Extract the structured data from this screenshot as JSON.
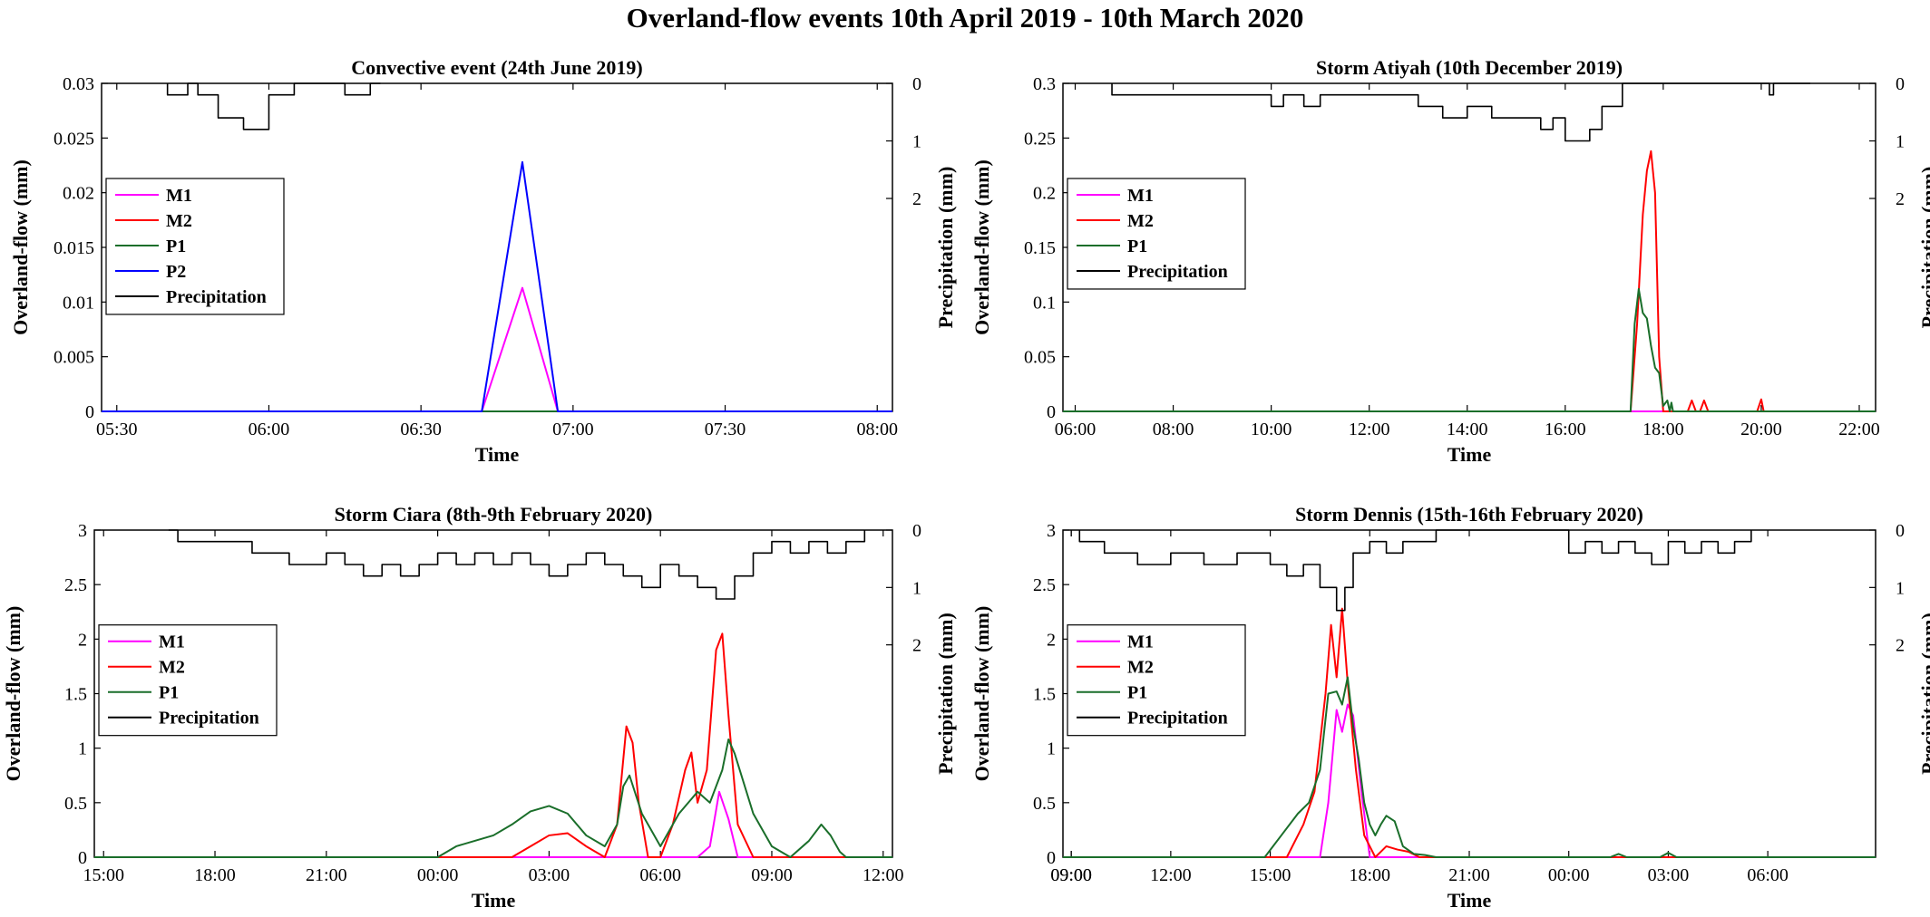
{
  "figure": {
    "title": "Overland-flow events 10th April 2019 - 10th March 2020"
  },
  "colors": {
    "M1": "#ff00ff",
    "M2": "#ff0000",
    "P1": "#1a6e2a",
    "P2": "#0000ff",
    "Precipitation": "#000000"
  },
  "chart_data": [
    {
      "type": "line",
      "title": "Convective event (24th June 2019)",
      "xlabel": "Time",
      "ylabel": "Overland-flow (mm)",
      "y2label": "Precipitation (mm)",
      "xlim": [
        "05:27",
        "08:03"
      ],
      "ylim": [
        0,
        0.03
      ],
      "y2lim": [
        0,
        5.7
      ],
      "y2_reversed": true,
      "xticks": [
        "05:30",
        "06:00",
        "06:30",
        "07:00",
        "07:30",
        "08:00"
      ],
      "yticks": [
        "0",
        "0.005",
        "0.01",
        "0.015",
        "0.02",
        "0.025",
        "0.03"
      ],
      "y2ticks": [
        "0",
        "1",
        "2"
      ],
      "legend_position": "middle-left",
      "legend": [
        "M1",
        "M2",
        "P1",
        "P2",
        "Precipitation"
      ],
      "series": [
        {
          "name": "M1",
          "x": [
            "05:27",
            "06:42",
            "06:50",
            "06:57",
            "08:03"
          ],
          "y": [
            0,
            0,
            0.0113,
            0,
            0
          ]
        },
        {
          "name": "M2",
          "x": [
            "05:27",
            "08:03"
          ],
          "y": [
            0,
            0
          ]
        },
        {
          "name": "P1",
          "x": [
            "05:27",
            "08:03"
          ],
          "y": [
            0,
            0
          ]
        },
        {
          "name": "P2",
          "x": [
            "05:27",
            "06:42",
            "06:50",
            "06:57",
            "08:03"
          ],
          "y": [
            0,
            0,
            0.0228,
            0,
            0
          ]
        },
        {
          "name": "Precipitation",
          "step": true,
          "x": [
            "05:40",
            "05:44",
            "05:46",
            "05:50",
            "05:55",
            "06:00",
            "06:05",
            "06:15",
            "06:20",
            "06:22"
          ],
          "y": [
            0.2,
            0,
            0.2,
            0.6,
            0.8,
            0.2,
            0,
            0.2,
            0,
            0
          ]
        }
      ]
    },
    {
      "type": "line",
      "title": "Storm Atiyah (10th December 2019)",
      "xlabel": "Time",
      "ylabel": "Overland-flow (mm)",
      "y2label": "Precipitation (mm)",
      "xlim": [
        "05:45",
        "22:20"
      ],
      "ylim": [
        0,
        0.3
      ],
      "y2lim": [
        0,
        5.7
      ],
      "y2_reversed": true,
      "xticks": [
        "06:00",
        "08:00",
        "10:00",
        "12:00",
        "14:00",
        "16:00",
        "18:00",
        "20:00",
        "22:00"
      ],
      "yticks": [
        "0",
        "0.05",
        "0.1",
        "0.15",
        "0.2",
        "0.25",
        "0.3"
      ],
      "y2ticks": [
        "0",
        "1",
        "2"
      ],
      "legend_position": "middle-left",
      "legend": [
        "M1",
        "M2",
        "P1",
        "Precipitation"
      ],
      "series": [
        {
          "name": "M1",
          "x": [
            "05:45",
            "22:20"
          ],
          "y": [
            0,
            0
          ]
        },
        {
          "name": "M2",
          "x": [
            "05:45",
            "17:20",
            "17:28",
            "17:35",
            "17:40",
            "17:45",
            "17:50",
            "17:55",
            "18:00",
            "18:05",
            "18:30",
            "18:35",
            "18:40",
            "18:45",
            "18:50",
            "18:55",
            "19:55",
            "20:00",
            "20:03",
            "20:06",
            "22:20"
          ],
          "y": [
            0,
            0,
            0.08,
            0.18,
            0.22,
            0.238,
            0.2,
            0.05,
            0,
            0,
            0,
            0.01,
            0,
            0,
            0.01,
            0,
            0,
            0.011,
            0,
            0,
            0
          ]
        },
        {
          "name": "P1",
          "x": [
            "05:45",
            "17:20",
            "17:25",
            "17:30",
            "17:35",
            "17:40",
            "17:45",
            "17:50",
            "17:55",
            "18:00",
            "18:05",
            "18:08",
            "18:10",
            "18:12",
            "22:20"
          ],
          "y": [
            0,
            0,
            0.08,
            0.112,
            0.09,
            0.085,
            0.06,
            0.04,
            0.035,
            0.005,
            0.01,
            0,
            0.008,
            0,
            0
          ]
        },
        {
          "name": "Precipitation",
          "step": true,
          "x": [
            "06:45",
            "09:30",
            "10:00",
            "10:15",
            "10:40",
            "11:00",
            "11:30",
            "12:00",
            "13:00",
            "13:30",
            "14:00",
            "14:30",
            "15:00",
            "15:30",
            "15:45",
            "16:00",
            "16:30",
            "16:45",
            "17:10",
            "20:10",
            "20:15",
            "21:00"
          ],
          "y": [
            0.2,
            0.2,
            0.4,
            0.2,
            0.4,
            0.2,
            0.2,
            0.2,
            0.4,
            0.6,
            0.4,
            0.6,
            0.6,
            0.8,
            0.6,
            1.0,
            0.8,
            0.4,
            0,
            0.2,
            0,
            0
          ]
        }
      ]
    },
    {
      "type": "line",
      "title": "Storm Ciara (8th-9th February 2020)",
      "xlabel": "Time",
      "ylabel": "Overland-flow (mm)",
      "y2label": "Precipitation (mm)",
      "xlim": [
        "14:45",
        "+12:15"
      ],
      "ylim": [
        0,
        3
      ],
      "y2lim": [
        0,
        5.7
      ],
      "y2_reversed": true,
      "xticks": [
        "15:00",
        "18:00",
        "21:00",
        "00:00",
        "03:00",
        "06:00",
        "09:00",
        "12:00"
      ],
      "yticks": [
        "0",
        "0.5",
        "1",
        "1.5",
        "2",
        "2.5",
        "3"
      ],
      "y2ticks": [
        "0",
        "1",
        "2"
      ],
      "legend_position": "middle-left",
      "legend": [
        "M1",
        "M2",
        "P1",
        "Precipitation"
      ],
      "series": [
        {
          "name": "M1",
          "x": [
            "14:45",
            "+07:00",
            "+07:20",
            "+07:35",
            "+07:50",
            "+08:05",
            "+12:15"
          ],
          "y": [
            0,
            0,
            0.1,
            0.6,
            0.35,
            0,
            0
          ]
        },
        {
          "name": "M2",
          "x": [
            "14:45",
            "+02:00",
            "+02:30",
            "+03:00",
            "+03:30",
            "+04:00",
            "+04:30",
            "+04:50",
            "+05:05",
            "+05:15",
            "+05:25",
            "+05:40",
            "+06:00",
            "+06:20",
            "+06:40",
            "+06:50",
            "+07:00",
            "+07:15",
            "+07:30",
            "+07:40",
            "+07:50",
            "+08:05",
            "+08:30",
            "+12:15"
          ],
          "y": [
            0,
            0,
            0.1,
            0.2,
            0.22,
            0.1,
            0,
            0.3,
            1.2,
            1.05,
            0.5,
            0,
            0,
            0.3,
            0.8,
            0.96,
            0.5,
            0.8,
            1.9,
            2.05,
            1.3,
            0.3,
            0,
            0
          ]
        },
        {
          "name": "P1",
          "x": [
            "14:45",
            "+00:00",
            "+00:30",
            "+01:00",
            "+01:30",
            "+02:00",
            "+02:30",
            "+03:00",
            "+03:30",
            "+04:00",
            "+04:30",
            "+04:50",
            "+05:00",
            "+05:10",
            "+05:30",
            "+06:00",
            "+06:30",
            "+07:00",
            "+07:20",
            "+07:40",
            "+07:50",
            "+08:00",
            "+08:30",
            "+09:00",
            "+09:30",
            "+10:00",
            "+10:20",
            "+10:35",
            "+10:50",
            "+11:00",
            "+12:15"
          ],
          "y": [
            0,
            0,
            0.1,
            0.15,
            0.2,
            0.3,
            0.42,
            0.47,
            0.4,
            0.2,
            0.1,
            0.3,
            0.65,
            0.75,
            0.4,
            0.1,
            0.4,
            0.6,
            0.5,
            0.8,
            1.08,
            0.95,
            0.4,
            0.1,
            0,
            0.15,
            0.3,
            0.2,
            0.05,
            0,
            0
          ]
        },
        {
          "name": "Precipitation",
          "step": true,
          "x": [
            "16:45",
            "17:00",
            "19:00",
            "20:00",
            "21:00",
            "21:30",
            "22:00",
            "22:30",
            "23:00",
            "23:30",
            "+00:00",
            "+00:30",
            "+01:00",
            "+01:30",
            "+02:00",
            "+02:30",
            "+03:00",
            "+03:30",
            "+04:00",
            "+04:30",
            "+05:00",
            "+05:30",
            "+06:00",
            "+06:30",
            "+07:00",
            "+07:30",
            "+08:00",
            "+08:30",
            "+09:00",
            "+09:30",
            "+10:00",
            "+10:30",
            "+11:00",
            "+11:30"
          ],
          "y": [
            0,
            0.2,
            0.4,
            0.6,
            0.4,
            0.6,
            0.8,
            0.6,
            0.8,
            0.6,
            0.4,
            0.6,
            0.4,
            0.6,
            0.4,
            0.6,
            0.8,
            0.6,
            0.4,
            0.6,
            0.8,
            1.0,
            0.6,
            0.8,
            1.0,
            1.2,
            0.8,
            0.4,
            0.2,
            0.4,
            0.2,
            0.4,
            0.2,
            0
          ]
        }
      ]
    },
    {
      "type": "line",
      "title": "Storm Dennis (15th-16th February 2020)",
      "xlabel": "Time",
      "ylabel": "Overland-flow (mm)",
      "y2label": "Precipitation (mm)",
      "xlim": [
        "08:45",
        "+09:15"
      ],
      "ylim": [
        0,
        3
      ],
      "y2lim": [
        0,
        5.7
      ],
      "y2_reversed": true,
      "xticks": [
        "09:00",
        "12:00",
        "15:00",
        "18:00",
        "21:00",
        "00:00",
        "03:00",
        "06:00",
        "09:00"
      ],
      "yticks": [
        "0",
        "0.5",
        "1",
        "1.5",
        "2",
        "2.5",
        "3"
      ],
      "y2ticks": [
        "0",
        "1",
        "2"
      ],
      "legend_position": "middle-left",
      "legend": [
        "M1",
        "M2",
        "P1",
        "Precipitation"
      ],
      "series": [
        {
          "name": "M1",
          "x": [
            "08:45",
            "16:30",
            "16:45",
            "17:00",
            "17:10",
            "17:20",
            "17:30",
            "17:45",
            "18:00",
            "+09:15"
          ],
          "y": [
            0,
            0,
            0.5,
            1.35,
            1.15,
            1.4,
            1.3,
            0.6,
            0,
            0
          ]
        },
        {
          "name": "M2",
          "x": [
            "08:45",
            "15:30",
            "16:00",
            "16:20",
            "16:40",
            "16:50",
            "17:00",
            "17:10",
            "17:20",
            "17:35",
            "17:50",
            "18:10",
            "18:30",
            "18:50",
            "19:10",
            "19:30",
            "+09:15"
          ],
          "y": [
            0,
            0,
            0.3,
            0.6,
            1.5,
            2.13,
            1.65,
            2.28,
            1.6,
            0.8,
            0.2,
            0,
            0.1,
            0.07,
            0.05,
            0,
            0
          ]
        },
        {
          "name": "P1",
          "x": [
            "08:45",
            "14:50",
            "15:20",
            "15:50",
            "16:10",
            "16:30",
            "16:45",
            "17:00",
            "17:10",
            "17:20",
            "17:30",
            "17:40",
            "17:50",
            "18:00",
            "18:10",
            "18:20",
            "18:30",
            "18:45",
            "19:00",
            "19:20",
            "19:40",
            "20:00",
            "+01:15",
            "+01:30",
            "+01:45",
            "+02:45",
            "+03:00",
            "+03:15",
            "+09:15"
          ],
          "y": [
            0,
            0,
            0.2,
            0.4,
            0.5,
            0.8,
            1.5,
            1.52,
            1.4,
            1.65,
            1.2,
            0.9,
            0.5,
            0.3,
            0.2,
            0.3,
            0.38,
            0.33,
            0.1,
            0.03,
            0.02,
            0,
            0,
            0.03,
            0,
            0,
            0.04,
            0,
            0
          ]
        },
        {
          "name": "Precipitation",
          "step": true,
          "x": [
            "09:15",
            "10:00",
            "11:00",
            "12:00",
            "13:00",
            "14:00",
            "15:00",
            "15:30",
            "16:00",
            "16:30",
            "17:00",
            "17:15",
            "17:30",
            "18:00",
            "18:30",
            "19:00",
            "20:00",
            "+00:00",
            "+00:30",
            "+01:00",
            "+01:30",
            "+02:00",
            "+02:30",
            "+03:00",
            "+03:30",
            "+04:00",
            "+04:30",
            "+05:00",
            "+05:30"
          ],
          "y": [
            0.2,
            0.4,
            0.6,
            0.4,
            0.6,
            0.4,
            0.6,
            0.8,
            0.6,
            1.0,
            1.4,
            1.0,
            0.4,
            0.2,
            0.4,
            0.2,
            0,
            0.4,
            0.2,
            0.4,
            0.2,
            0.4,
            0.6,
            0.2,
            0.4,
            0.2,
            0.4,
            0.2,
            0
          ]
        }
      ]
    }
  ]
}
